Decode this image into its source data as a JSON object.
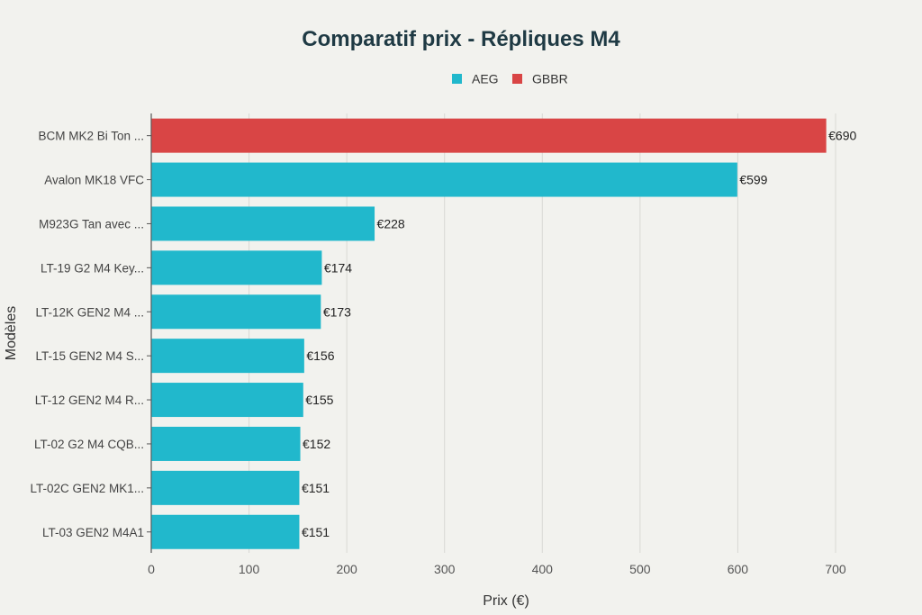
{
  "chart_data": {
    "type": "bar",
    "orientation": "horizontal",
    "title": "Comparatif prix - Répliques M4",
    "xlabel": "Prix (€)",
    "ylabel": "Modèles",
    "xlim": [
      0,
      700
    ],
    "xticks": [
      0,
      100,
      200,
      300,
      400,
      500,
      600,
      700
    ],
    "grid": true,
    "legend_position": "top-center",
    "legend": [
      {
        "name": "AEG",
        "color": "#21b8cc"
      },
      {
        "name": "GBBR",
        "color": "#d94545"
      }
    ],
    "value_prefix": "€",
    "bars": [
      {
        "category": "BCM MK2 Bi Ton ...",
        "value": 690,
        "series": "GBBR"
      },
      {
        "category": "Avalon MK18 VFC",
        "value": 599,
        "series": "AEG"
      },
      {
        "category": "M923G Tan avec ...",
        "value": 228,
        "series": "AEG"
      },
      {
        "category": "LT-19 G2 M4 Key...",
        "value": 174,
        "series": "AEG"
      },
      {
        "category": "LT-12K GEN2 M4 ...",
        "value": 173,
        "series": "AEG"
      },
      {
        "category": "LT-15 GEN2 M4 S...",
        "value": 156,
        "series": "AEG"
      },
      {
        "category": "LT-12 GEN2 M4 R...",
        "value": 155,
        "series": "AEG"
      },
      {
        "category": "LT-02 G2 M4 CQB...",
        "value": 152,
        "series": "AEG"
      },
      {
        "category": "LT-02C GEN2 MK1...",
        "value": 151,
        "series": "AEG"
      },
      {
        "category": "LT-03 GEN2 M4A1",
        "value": 151,
        "series": "AEG"
      }
    ]
  }
}
